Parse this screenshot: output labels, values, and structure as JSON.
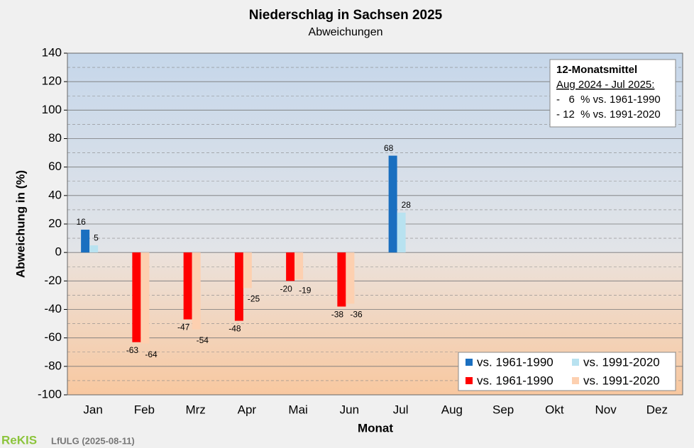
{
  "chart_data": {
    "type": "bar",
    "title": "Niederschlag  in Sachsen 2025",
    "subtitle": "Abweichungen",
    "x_label": "Monat",
    "y_label": "Abweichung in (%)",
    "categories": [
      "Jan",
      "Feb",
      "Mrz",
      "Apr",
      "Mai",
      "Jun",
      "Jul",
      "Aug",
      "Sep",
      "Okt",
      "Nov",
      "Dez"
    ],
    "series": [
      {
        "name": "vs. 1961-1990",
        "color": "#1a6fc0",
        "negative_color": "#ff0000",
        "values": [
          16,
          -63,
          -47,
          -48,
          -20,
          -38,
          68,
          null,
          null,
          null,
          null,
          null
        ]
      },
      {
        "name": "vs. 1991-2020",
        "color": "#b8e2f0",
        "negative_color": "#fdd0b0",
        "values": [
          5,
          -64,
          -54,
          -25,
          -19,
          -36,
          28,
          null,
          null,
          null,
          null,
          null
        ]
      }
    ],
    "ylim": [
      -100,
      140
    ],
    "yticks": [
      -100,
      -80,
      -60,
      -40,
      -20,
      0,
      20,
      40,
      60,
      80,
      100,
      120,
      140
    ],
    "grid": true,
    "legend": "lower right",
    "annotation": {
      "title": "12-Monatsmittel",
      "period": "Aug 2024 - Jul 2025:",
      "lines": [
        "-   6  % vs. 1961-1990",
        "- 12  % vs. 1991-2020"
      ]
    },
    "footer": {
      "brand": "ReKIS",
      "source": "LfULG (2025-08-11)"
    }
  }
}
